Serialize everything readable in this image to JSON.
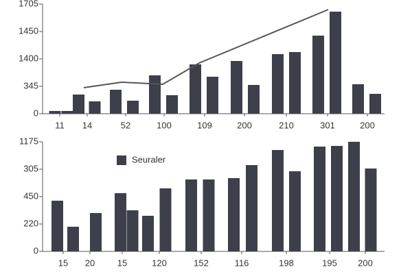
{
  "chart_data": [
    {
      "type": "bar",
      "x": [
        20,
        38,
        54.5,
        78,
        108.5,
        133.5,
        165.5,
        190.5,
        224.5,
        249.5,
        284.5,
        309.5,
        344.5,
        369.5,
        403.5,
        428.5,
        461.5,
        486.5
      ],
      "series": [
        {
          "type": "bar",
          "color": "#3d3f4a",
          "values": [
            0.1,
            0.1,
            0.7,
            0.45,
            0.875,
            0.475,
            1.4,
            0.675,
            1.8,
            1.35,
            1.925,
            1.05,
            2.175,
            2.25,
            2.85,
            3.725,
            1.075,
            0.725
          ]
        },
        {
          "type": "line",
          "color": "#555555",
          "x": [
            62,
            117,
            177,
            230,
            418
          ],
          "values": [
            0.95,
            1.15,
            1.075,
            1.85,
            3.8
          ]
        }
      ],
      "xlim": [
        2,
        500
      ],
      "xticks": [
        {
          "value": 27,
          "label": "11"
        },
        {
          "value": 67,
          "label": "14"
        },
        {
          "value": 123,
          "label": "52"
        },
        {
          "value": 179,
          "label": "100"
        },
        {
          "value": 238,
          "label": "109"
        },
        {
          "value": 296,
          "label": "200"
        },
        {
          "value": 357,
          "label": "210"
        },
        {
          "value": 417,
          "label": "301"
        },
        {
          "value": 475,
          "label": "200"
        }
      ],
      "ylim": [
        0,
        4
      ],
      "yticks": [
        0,
        {
          "value": 1,
          "label": "345"
        },
        {
          "value": 2,
          "label": "1400"
        },
        {
          "value": 3,
          "label": "1450"
        },
        {
          "value": 4,
          "label": "1705"
        }
      ]
    },
    {
      "type": "bar",
      "x": [
        23.5,
        46.5,
        79.5,
        115.5,
        133,
        155.5,
        181,
        218.5,
        244,
        280.5,
        306.5,
        344.5,
        369.5,
        405.5,
        430.5,
        455.5,
        480
      ],
      "series": [
        {
          "type": "bar",
          "name": "Seuraler",
          "color": "#3d3f4a",
          "values": [
            1.85,
            0.9,
            1.4,
            2.125,
            1.5,
            1.3,
            2.3,
            2.625,
            2.625,
            2.675,
            3.15,
            3.7,
            2.925,
            3.825,
            3.85,
            4.0,
            3.025
          ]
        }
      ],
      "xlim": [
        2,
        500
      ],
      "xticks": [
        {
          "value": 32,
          "label": "15"
        },
        {
          "value": 71,
          "label": "20"
        },
        {
          "value": 118,
          "label": "15"
        },
        {
          "value": 172,
          "label": "120"
        },
        {
          "value": 233,
          "label": "152"
        },
        {
          "value": 292,
          "label": "116"
        },
        {
          "value": 357,
          "label": "198"
        },
        {
          "value": 420,
          "label": "195"
        },
        {
          "value": 472,
          "label": "200"
        }
      ],
      "ylim": [
        0,
        4
      ],
      "yticks": [
        0,
        {
          "value": 1,
          "label": "220"
        },
        {
          "value": 2,
          "label": "450"
        },
        {
          "value": 3,
          "label": "305"
        },
        {
          "value": 4,
          "label": "1175"
        }
      ]
    }
  ]
}
